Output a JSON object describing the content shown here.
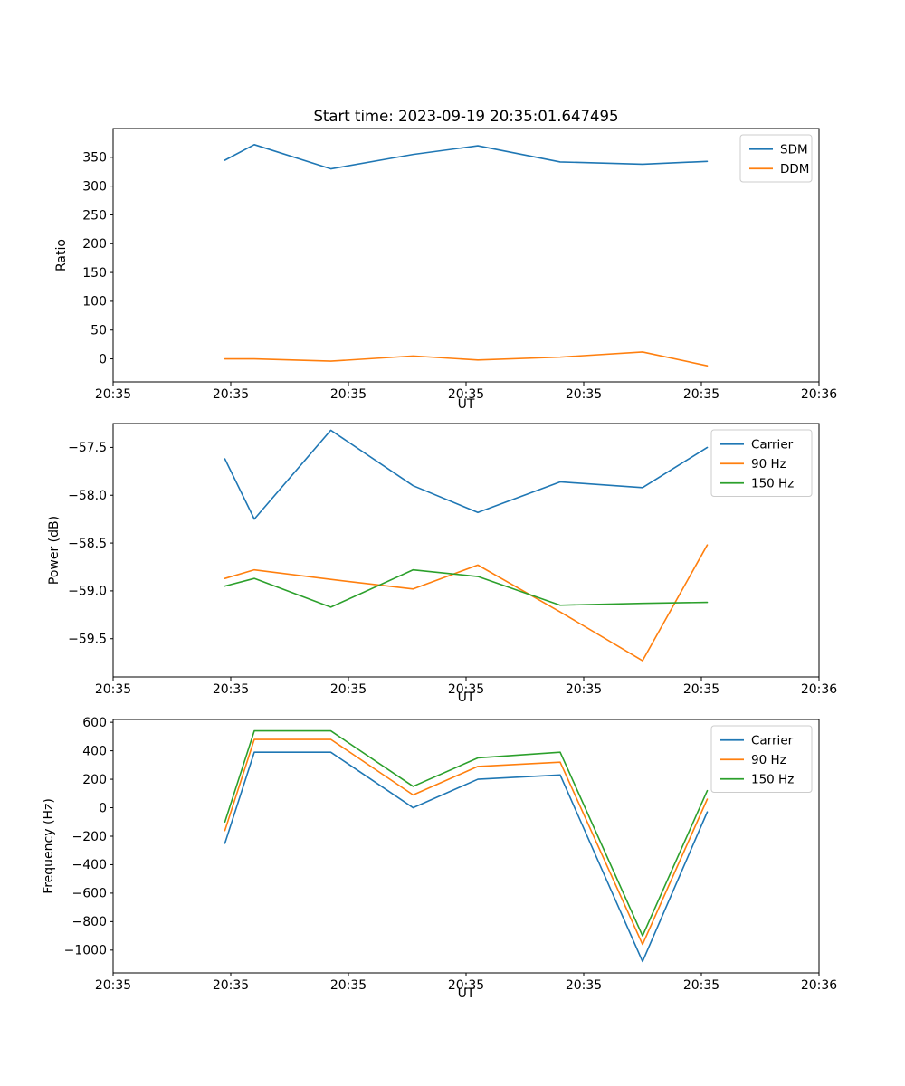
{
  "chart_data": [
    {
      "type": "line",
      "title": "Start time: 2023-09-19 20:35:01.647495",
      "xlabel": "UT",
      "ylabel": "Ratio",
      "x_unit": "seconds after 20:35:00 UT",
      "x": [
        9.5,
        12,
        18.5,
        25.5,
        31,
        38,
        45,
        50.5
      ],
      "series": [
        {
          "name": "SDM",
          "color": "#1f77b4",
          "values": [
            345,
            372,
            330,
            355,
            370,
            342,
            338,
            343
          ]
        },
        {
          "name": "DDM",
          "color": "#ff7f0e",
          "values": [
            0,
            0,
            -4,
            5,
            -2,
            3,
            12,
            -12
          ]
        }
      ],
      "xlim": [
        0,
        60
      ],
      "ylim": [
        -40,
        400
      ],
      "xticks": [
        0,
        10,
        20,
        30,
        40,
        50,
        60
      ],
      "xtick_labels": [
        "20:35",
        "20:35",
        "20:35",
        "20:35",
        "20:35",
        "20:35",
        "20:36"
      ],
      "yticks": [
        0,
        50,
        100,
        150,
        200,
        250,
        300,
        350
      ],
      "ytick_labels": [
        "0",
        "50",
        "100",
        "150",
        "200",
        "250",
        "300",
        "350"
      ],
      "grid": false,
      "legend": {
        "location": "upper right",
        "entries": [
          "SDM",
          "DDM"
        ]
      }
    },
    {
      "type": "line",
      "title": "",
      "xlabel": "UT",
      "ylabel": "Power (dB)",
      "x_unit": "seconds after 20:35:00 UT",
      "x": [
        9.5,
        12,
        18.5,
        25.5,
        31,
        38,
        45,
        50.5
      ],
      "series": [
        {
          "name": "Carrier",
          "color": "#1f77b4",
          "values": [
            -57.62,
            -58.25,
            -57.32,
            -57.9,
            -58.18,
            -57.86,
            -57.92,
            -57.5
          ]
        },
        {
          "name": "90 Hz",
          "color": "#ff7f0e",
          "values": [
            -58.87,
            -58.78,
            -58.88,
            -58.98,
            -58.73,
            -59.22,
            -59.73,
            -58.52
          ]
        },
        {
          "name": "150 Hz",
          "color": "#2ca02c",
          "values": [
            -58.95,
            -58.87,
            -59.17,
            -58.78,
            -58.85,
            -59.15,
            -59.13,
            -59.12
          ]
        }
      ],
      "xlim": [
        0,
        60
      ],
      "ylim": [
        -59.9,
        -57.25
      ],
      "xticks": [
        0,
        10,
        20,
        30,
        40,
        50,
        60
      ],
      "xtick_labels": [
        "20:35",
        "20:35",
        "20:35",
        "20:35",
        "20:35",
        "20:35",
        "20:36"
      ],
      "yticks": [
        -57.5,
        -58.0,
        -58.5,
        -59.0,
        -59.5
      ],
      "ytick_labels": [
        "−57.5",
        "−58.0",
        "−58.5",
        "−59.0",
        "−59.5"
      ],
      "grid": false,
      "legend": {
        "location": "upper right",
        "entries": [
          "Carrier",
          "90 Hz",
          "150 Hz"
        ]
      }
    },
    {
      "type": "line",
      "title": "",
      "xlabel": "UT",
      "ylabel": "Frequency (Hz)",
      "x_unit": "seconds after 20:35:00 UT",
      "x": [
        9.5,
        12,
        18.5,
        25.5,
        31,
        38,
        45,
        50.5
      ],
      "series": [
        {
          "name": "Carrier",
          "color": "#1f77b4",
          "values": [
            -250,
            390,
            390,
            0,
            200,
            230,
            -1080,
            -30
          ]
        },
        {
          "name": "90 Hz",
          "color": "#ff7f0e",
          "values": [
            -160,
            480,
            480,
            90,
            290,
            320,
            -960,
            60
          ]
        },
        {
          "name": "150 Hz",
          "color": "#2ca02c",
          "values": [
            -100,
            540,
            540,
            150,
            350,
            390,
            -900,
            120
          ]
        }
      ],
      "xlim": [
        0,
        60
      ],
      "ylim": [
        -1160,
        620
      ],
      "xticks": [
        0,
        10,
        20,
        30,
        40,
        50,
        60
      ],
      "xtick_labels": [
        "20:35",
        "20:35",
        "20:35",
        "20:35",
        "20:35",
        "20:35",
        "20:36"
      ],
      "yticks": [
        600,
        400,
        200,
        0,
        -200,
        -400,
        -600,
        -800,
        -1000
      ],
      "ytick_labels": [
        "600",
        "400",
        "200",
        "0",
        "−200",
        "−400",
        "−600",
        "−800",
        "−1000"
      ],
      "grid": false,
      "legend": {
        "location": "upper right",
        "entries": [
          "Carrier",
          "90 Hz",
          "150 Hz"
        ]
      }
    }
  ]
}
